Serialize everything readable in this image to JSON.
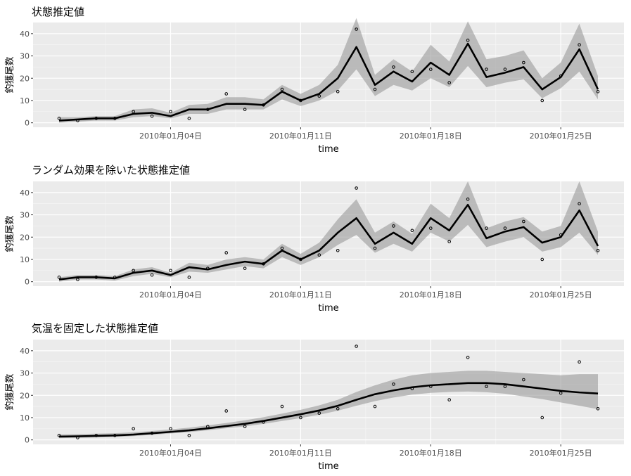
{
  "chart_data": [
    {
      "type": "line",
      "title": "状態推定値",
      "xlabel": "time",
      "ylabel": "釣獲尾数",
      "x_ticks": [
        "2010年01月04日",
        "2010年01月11日",
        "2010年01月18日",
        "2010年01月25日"
      ],
      "y_ticks": [
        0,
        10,
        20,
        30,
        40
      ],
      "ylim": [
        -2,
        45
      ],
      "grid": true,
      "background": "#ebebeb",
      "band_color": "#999999",
      "line_color": "#000000",
      "points": [
        2,
        1,
        2,
        2,
        5,
        3,
        5,
        2,
        6,
        13,
        6,
        8,
        15,
        10,
        12,
        14,
        42,
        15,
        25,
        23,
        24,
        18,
        37,
        24,
        24,
        27,
        10,
        21,
        35,
        14
      ],
      "estimate": [
        1.0,
        1.5,
        2.0,
        2.0,
        4.0,
        4.5,
        3.0,
        6.0,
        6.0,
        8.5,
        8.5,
        8.0,
        14.0,
        10.0,
        13.0,
        20.0,
        34.0,
        17.0,
        23.0,
        18.5,
        27.0,
        21.5,
        35.5,
        20.5,
        22.5,
        25.0,
        15.0,
        20.5,
        33.0,
        15.0
      ],
      "lower": [
        0.0,
        0.5,
        1.0,
        1.0,
        2.5,
        3.0,
        2.0,
        4.0,
        4.0,
        6.0,
        6.0,
        6.0,
        10.5,
        7.5,
        10.0,
        14.5,
        24.0,
        12.0,
        17.0,
        14.5,
        20.0,
        16.0,
        25.5,
        16.0,
        18.0,
        19.5,
        11.0,
        15.5,
        23.0,
        10.5
      ],
      "upper": [
        2.5,
        2.5,
        3.0,
        3.0,
        6.0,
        6.5,
        4.5,
        8.0,
        8.5,
        11.5,
        11.5,
        10.5,
        17.0,
        13.0,
        17.0,
        26.0,
        47.0,
        21.5,
        28.5,
        23.0,
        35.0,
        27.5,
        45.5,
        28.5,
        30.0,
        32.5,
        20.0,
        27.0,
        44.5,
        21.0
      ]
    },
    {
      "type": "line",
      "title": "ランダム効果を除いた状態推定値",
      "xlabel": "time",
      "ylabel": "釣獲尾数",
      "x_ticks": [
        "2010年01月04日",
        "2010年01月11日",
        "2010年01月18日",
        "2010年01月25日"
      ],
      "y_ticks": [
        0,
        10,
        20,
        30,
        40
      ],
      "ylim": [
        -2,
        45
      ],
      "grid": true,
      "background": "#ebebeb",
      "band_color": "#999999",
      "line_color": "#000000",
      "points": [
        2,
        1,
        2,
        2,
        5,
        3,
        5,
        2,
        6,
        13,
        6,
        8,
        15,
        10,
        12,
        14,
        42,
        15,
        25,
        23,
        24,
        18,
        37,
        24,
        24,
        27,
        10,
        21,
        35,
        14
      ],
      "estimate": [
        1.0,
        2.0,
        2.0,
        1.5,
        4.0,
        5.0,
        3.0,
        6.5,
        5.5,
        7.5,
        9.0,
        8.0,
        14.0,
        10.0,
        14.0,
        22.0,
        28.5,
        17.0,
        22.0,
        17.0,
        28.5,
        23.0,
        34.5,
        19.5,
        22.5,
        24.5,
        17.5,
        20.0,
        32.0,
        16.0
      ],
      "lower": [
        0.0,
        1.0,
        1.0,
        0.5,
        2.5,
        3.5,
        2.0,
        4.5,
        4.0,
        5.5,
        7.0,
        6.0,
        11.0,
        7.5,
        11.0,
        16.5,
        21.0,
        13.0,
        17.0,
        13.5,
        22.0,
        18.0,
        25.5,
        15.5,
        18.0,
        20.0,
        13.5,
        15.5,
        22.0,
        12.0
      ],
      "upper": [
        2.0,
        3.0,
        3.0,
        2.5,
        5.5,
        6.5,
        4.0,
        8.5,
        7.5,
        10.0,
        11.0,
        10.0,
        17.0,
        12.5,
        17.5,
        28.0,
        37.0,
        22.0,
        27.0,
        21.5,
        35.0,
        28.5,
        45.0,
        24.0,
        27.0,
        29.0,
        22.5,
        25.0,
        45.0,
        22.5
      ]
    },
    {
      "type": "line",
      "title": "気温を固定した状態推定値",
      "xlabel": "time",
      "ylabel": "釣獲尾数",
      "x_ticks": [
        "2010年01月04日",
        "2010年01月11日",
        "2010年01月18日",
        "2010年01月25日"
      ],
      "y_ticks": [
        0,
        10,
        20,
        30,
        40
      ],
      "ylim": [
        -2,
        45
      ],
      "grid": true,
      "background": "#ebebeb",
      "band_color": "#999999",
      "line_color": "#000000",
      "points": [
        2,
        1,
        2,
        2,
        5,
        3,
        5,
        2,
        6,
        13,
        6,
        8,
        15,
        10,
        12,
        14,
        42,
        15,
        25,
        23,
        24,
        18,
        37,
        24,
        24,
        27,
        10,
        21,
        35,
        14
      ],
      "estimate": [
        1.5,
        1.6,
        1.8,
        2.0,
        2.4,
        3.0,
        3.6,
        4.3,
        5.2,
        6.2,
        7.2,
        8.5,
        10.0,
        11.5,
        13.2,
        15.3,
        18.0,
        20.5,
        22.2,
        23.6,
        24.5,
        25.0,
        25.5,
        25.5,
        25.0,
        24.0,
        23.0,
        22.0,
        21.3,
        20.8
      ],
      "lower": [
        0.8,
        0.9,
        1.1,
        1.3,
        1.7,
        2.3,
        2.9,
        3.5,
        4.3,
        5.2,
        6.1,
        7.2,
        8.5,
        9.8,
        11.3,
        13.1,
        15.3,
        17.4,
        19.0,
        20.3,
        21.1,
        21.5,
        21.7,
        21.4,
        20.7,
        19.5,
        18.3,
        16.8,
        15.3,
        13.8
      ],
      "upper": [
        2.4,
        2.6,
        2.8,
        3.0,
        3.4,
        4.0,
        4.7,
        5.5,
        6.5,
        7.6,
        8.8,
        10.2,
        11.8,
        13.5,
        15.5,
        18.0,
        21.5,
        24.5,
        27.0,
        29.0,
        30.0,
        30.5,
        31.0,
        31.0,
        30.5,
        30.0,
        29.5,
        29.0,
        29.5,
        29.5
      ]
    }
  ]
}
